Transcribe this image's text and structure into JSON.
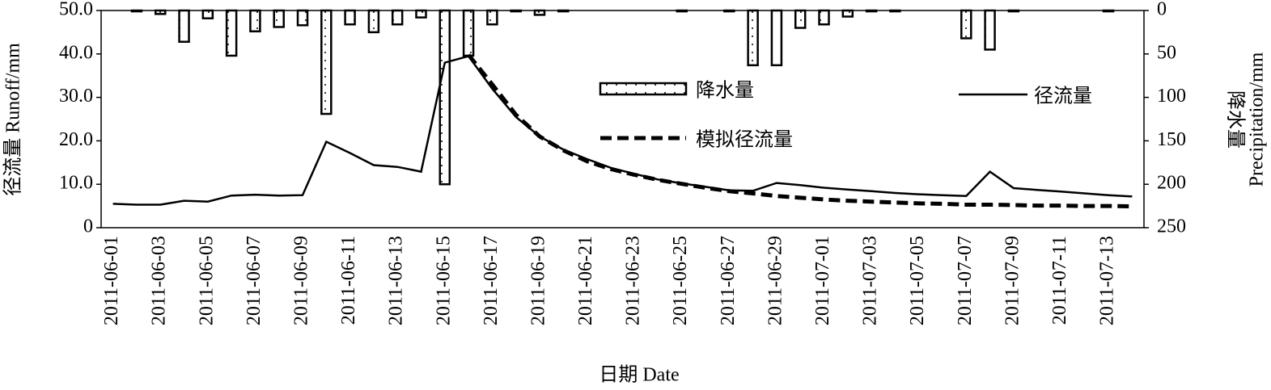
{
  "chart_data": {
    "type": "combo",
    "xlabel": "日期 Date",
    "ylabel": "径流量 Runoff/mm",
    "y2label": [
      "降水量",
      "Precipitation/mm"
    ],
    "categories": [
      "2011-06-01",
      null,
      "2011-06-03",
      null,
      "2011-06-05",
      null,
      "2011-06-07",
      null,
      "2011-06-09",
      null,
      "2011-06-11",
      null,
      "2011-06-13",
      null,
      "2011-06-15",
      null,
      "2011-06-17",
      null,
      "2011-06-19",
      null,
      "2011-06-21",
      null,
      "2011-06-23",
      null,
      "2011-06-25",
      null,
      "2011-06-27",
      null,
      "2011-06-29",
      null,
      "2011-07-01",
      null,
      "2011-07-03",
      null,
      "2011-07-05",
      null,
      "2011-07-07",
      null,
      "2011-07-09",
      null,
      "2011-07-11",
      null,
      "2011-07-13",
      null
    ],
    "ylim": [
      0,
      50
    ],
    "yticks": [
      0,
      {
        "value": 10,
        "label": "10.0"
      },
      {
        "value": 20,
        "label": "20.0"
      },
      {
        "value": 30,
        "label": "30.0"
      },
      {
        "value": 40,
        "label": "40.0"
      },
      {
        "value": 50,
        "label": "50.0"
      }
    ],
    "y2lim": [
      250,
      0
    ],
    "y2ticks": [
      0,
      50,
      100,
      150,
      200,
      250
    ],
    "series": [
      {
        "name": "降水量",
        "type": "bar",
        "axis": "y2",
        "color": "#000000",
        "values": [
          null,
          1,
          4,
          36,
          9,
          52,
          24,
          19,
          17,
          119,
          16,
          25,
          16,
          8,
          200,
          52,
          16,
          1,
          5,
          1,
          null,
          null,
          null,
          null,
          1,
          null,
          1,
          63,
          63,
          20,
          16,
          7,
          1,
          1,
          null,
          null,
          32,
          45,
          1,
          null,
          null,
          null,
          1,
          null
        ]
      },
      {
        "name": "径流量",
        "type": "line",
        "color": "#000000",
        "dashed": false,
        "values": [
          5.5,
          5.3,
          5.3,
          6.2,
          6.0,
          7.4,
          7.6,
          7.4,
          7.5,
          19.8,
          17.2,
          14.4,
          14.0,
          12.9,
          38.0,
          39.5,
          32.0,
          25.5,
          21.0,
          18.0,
          15.8,
          13.8,
          12.4,
          11.1,
          10.2,
          9.4,
          8.6,
          8.5,
          10.3,
          9.8,
          9.2,
          8.8,
          8.4,
          8.0,
          7.7,
          7.5,
          7.3,
          12.9,
          9.1,
          8.7,
          8.3,
          7.9,
          7.5,
          7.2
        ]
      },
      {
        "name": "模拟径流量",
        "type": "line",
        "color": "#000000",
        "dashed": true,
        "values": [
          null,
          null,
          null,
          null,
          null,
          null,
          null,
          null,
          null,
          null,
          null,
          null,
          null,
          null,
          null,
          39.8,
          33.0,
          26.0,
          21.0,
          17.8,
          15.3,
          13.5,
          12.2,
          11.0,
          10.1,
          9.2,
          8.4,
          7.9,
          7.3,
          6.9,
          6.5,
          6.2,
          6.0,
          5.8,
          5.6,
          5.5,
          5.3,
          5.3,
          5.2,
          5.1,
          5.1,
          5.0,
          5.0,
          4.9
        ]
      }
    ]
  }
}
